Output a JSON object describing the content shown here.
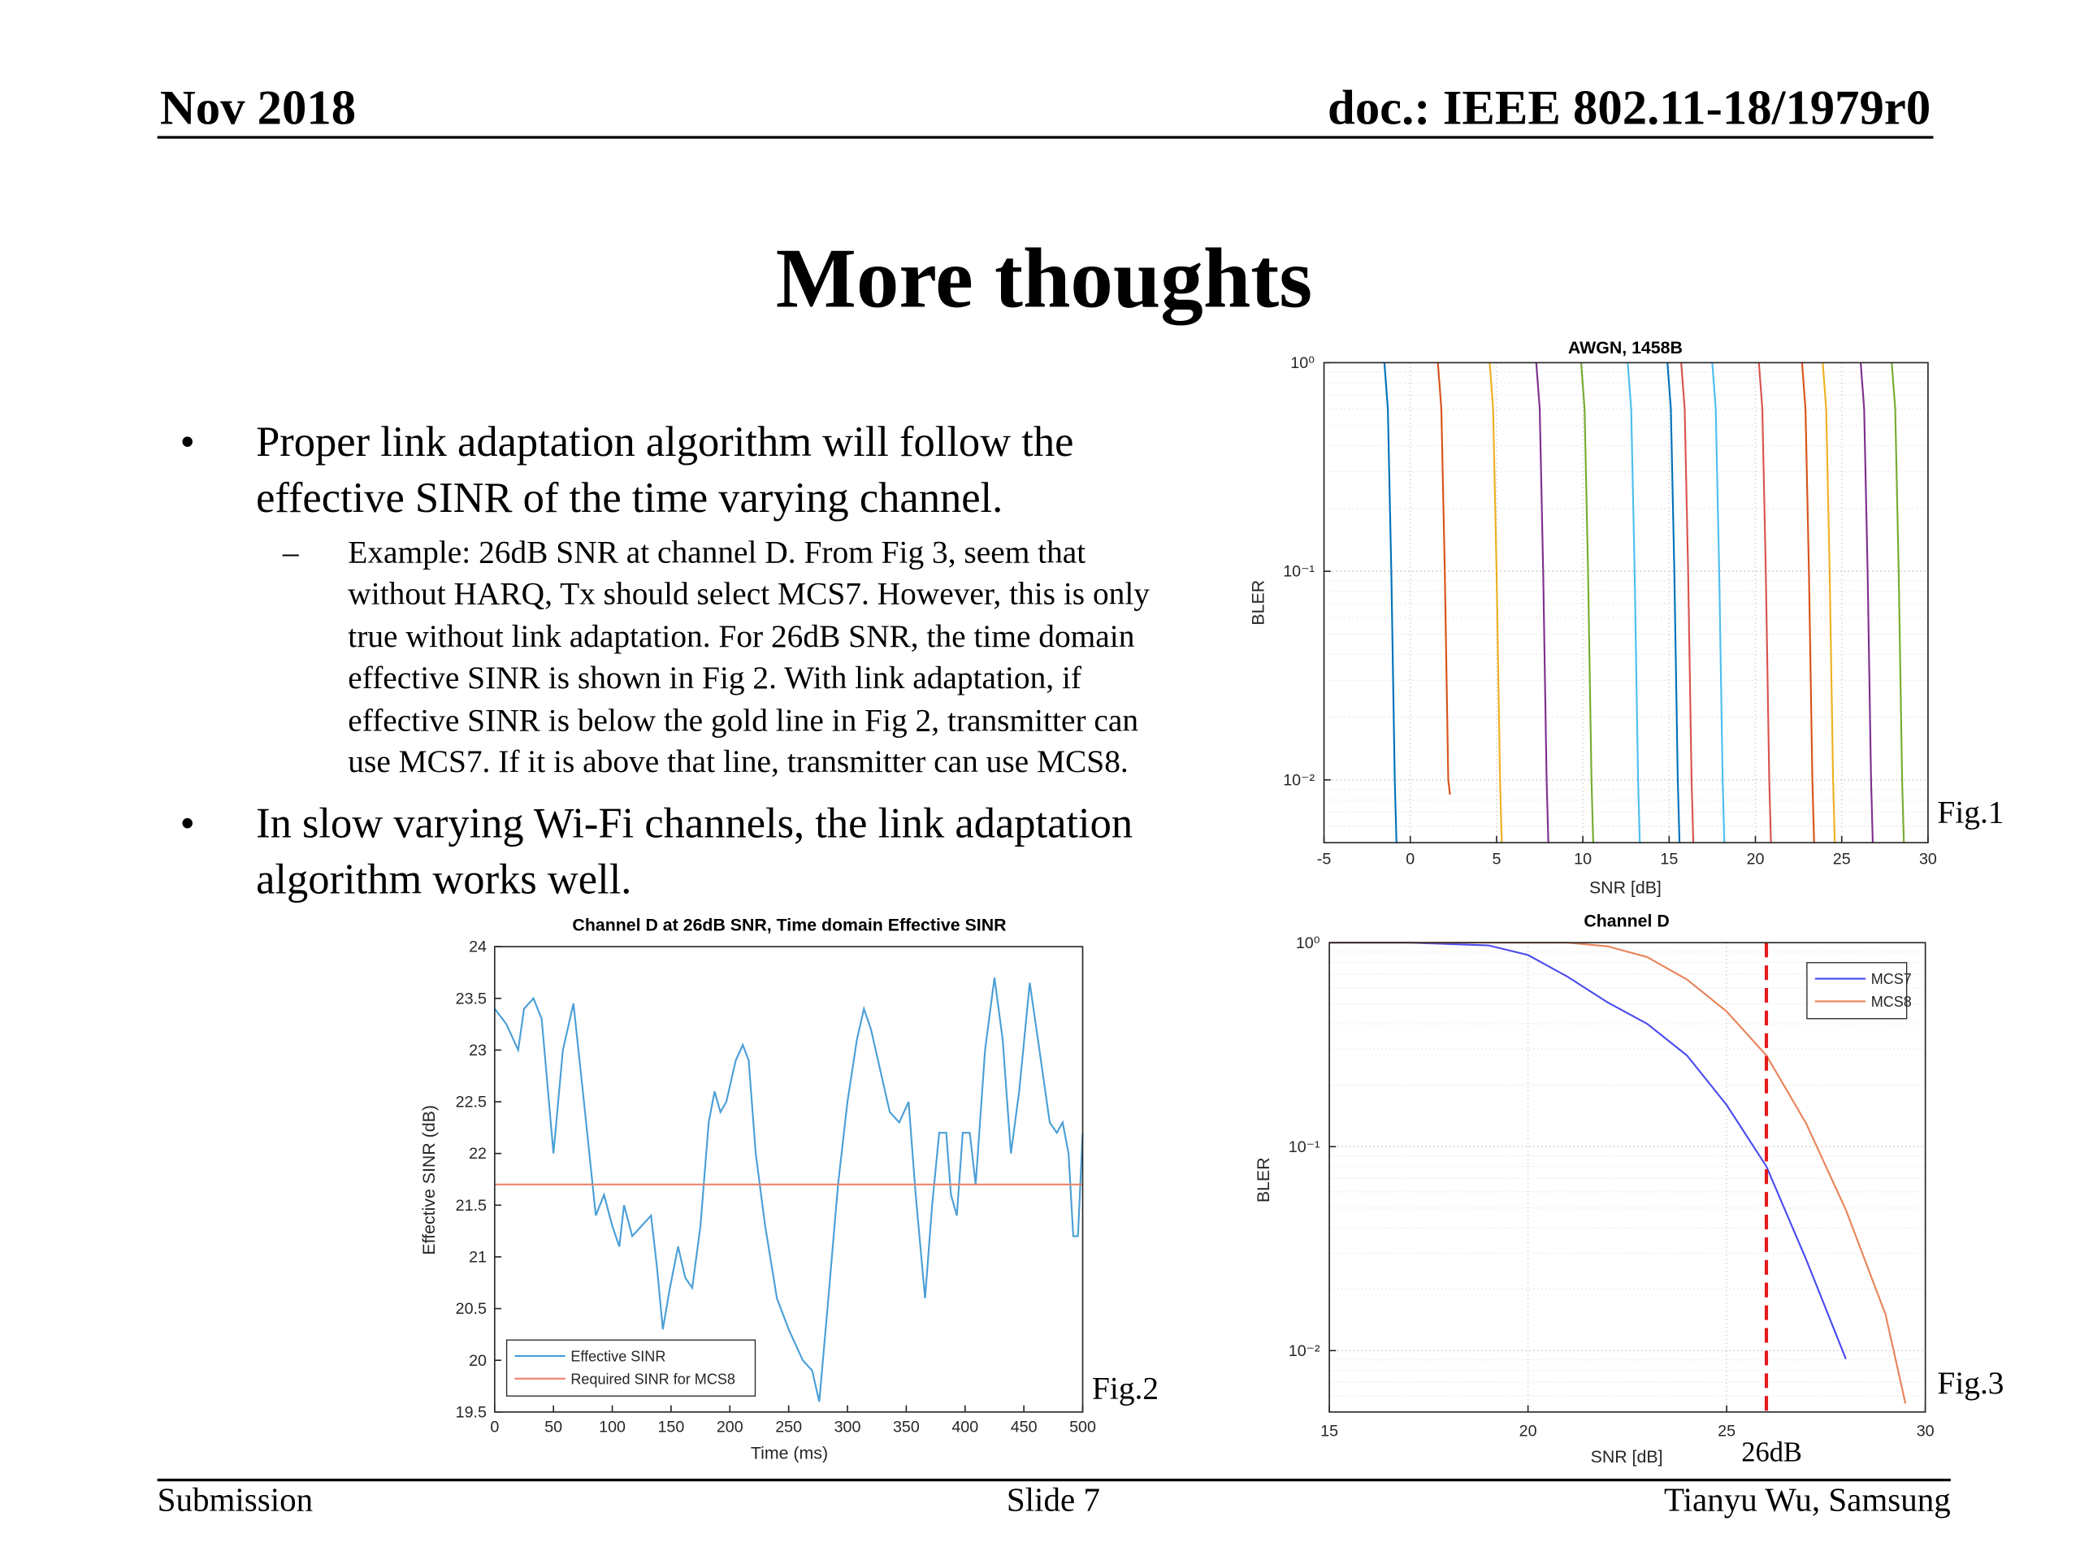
{
  "header": {
    "date": "Nov 2018",
    "doc_id": "doc.: IEEE 802.11-18/1979r0"
  },
  "title": "More thoughts",
  "bullets": [
    {
      "marker": "•",
      "lines": [
        "Proper link adaptation algorithm will follow the",
        "effective SINR of the time varying channel."
      ],
      "sub": [
        {
          "marker": "–",
          "lines": [
            "Example: 26dB SNR at channel D. From Fig 3, seem that",
            "without HARQ, Tx should select MCS7. However, this is only",
            "true without link adaptation. For 26dB SNR, the time domain",
            "effective SINR is shown in Fig 2. With link adaptation, if",
            "effective SINR is below the gold line in Fig 2, transmitter can",
            "use MCS7. If it is above that line, transmitter can use MCS8."
          ]
        }
      ]
    },
    {
      "marker": "•",
      "lines": [
        "In slow varying Wi-Fi channels, the link adaptation",
        "algorithm works well."
      ]
    }
  ],
  "figure_labels": [
    "Fig.1",
    "Fig.2",
    "Fig.3"
  ],
  "footer": {
    "left": "Submission",
    "center": "Slide 7",
    "right": "Tianyu Wu, Samsung"
  },
  "chart_data": [
    {
      "type": "line",
      "title": "AWGN, 1458B",
      "x_label": "SNR [dB]",
      "y_label": "BLER",
      "ylog": true,
      "grid": true,
      "xlim": [
        -5,
        30
      ],
      "xticks": [
        -5,
        0,
        5,
        10,
        15,
        20,
        25,
        30
      ],
      "ylim": [
        0.005,
        1
      ],
      "yticks": [
        {
          "value": 0.01,
          "label": "10⁻²"
        },
        {
          "value": 0.1,
          "label": "10⁻¹"
        },
        {
          "value": 1,
          "label": "10⁰"
        }
      ],
      "series": [
        {
          "color": "#0072BD",
          "x": [
            -1.5,
            -1.3,
            -1.1,
            -0.9,
            -0.8
          ],
          "values": [
            1,
            0.6,
            0.1,
            0.01,
            0.005
          ]
        },
        {
          "color": "#D95319",
          "x": [
            1.6,
            1.8,
            2.0,
            2.2,
            2.3
          ],
          "values": [
            1,
            0.6,
            0.1,
            0.01,
            0.0085
          ]
        },
        {
          "color": "#EDB120",
          "x": [
            4.6,
            4.8,
            5.0,
            5.2,
            5.3
          ],
          "values": [
            1,
            0.6,
            0.1,
            0.01,
            0.005
          ]
        },
        {
          "color": "#7E2F8E",
          "x": [
            7.3,
            7.5,
            7.7,
            7.9,
            8.0
          ],
          "values": [
            1,
            0.6,
            0.1,
            0.01,
            0.005
          ]
        },
        {
          "color": "#77AC30",
          "x": [
            9.9,
            10.1,
            10.3,
            10.5,
            10.6
          ],
          "values": [
            1,
            0.6,
            0.1,
            0.01,
            0.005
          ]
        },
        {
          "color": "#4DBEEE",
          "x": [
            12.6,
            12.8,
            13.0,
            13.2,
            13.3
          ],
          "values": [
            1,
            0.6,
            0.1,
            0.01,
            0.005
          ]
        },
        {
          "color": "#0072BD",
          "x": [
            14.9,
            15.1,
            15.3,
            15.5,
            15.6
          ],
          "values": [
            1,
            0.6,
            0.1,
            0.01,
            0.005
          ]
        },
        {
          "color": "#D9534F",
          "x": [
            15.7,
            15.9,
            16.1,
            16.3,
            16.4
          ],
          "values": [
            1,
            0.6,
            0.1,
            0.01,
            0.005
          ]
        },
        {
          "color": "#4DBEEE",
          "x": [
            17.5,
            17.7,
            17.9,
            18.1,
            18.2
          ],
          "values": [
            1,
            0.6,
            0.1,
            0.01,
            0.005
          ]
        },
        {
          "color": "#D9534F",
          "x": [
            20.2,
            20.4,
            20.6,
            20.8,
            20.9
          ],
          "values": [
            1,
            0.6,
            0.1,
            0.01,
            0.005
          ]
        },
        {
          "color": "#D95319",
          "x": [
            22.7,
            22.9,
            23.1,
            23.3,
            23.4
          ],
          "values": [
            1,
            0.6,
            0.1,
            0.01,
            0.005
          ]
        },
        {
          "color": "#EDB120",
          "x": [
            23.9,
            24.1,
            24.3,
            24.5,
            24.6
          ],
          "values": [
            1,
            0.6,
            0.1,
            0.01,
            0.005
          ]
        },
        {
          "color": "#7E2F8E",
          "x": [
            26.1,
            26.3,
            26.5,
            26.7,
            26.8
          ],
          "values": [
            1,
            0.6,
            0.1,
            0.01,
            0.005
          ]
        },
        {
          "color": "#77AC30",
          "x": [
            27.9,
            28.1,
            28.3,
            28.5,
            28.6
          ],
          "values": [
            1,
            0.6,
            0.1,
            0.01,
            0.005
          ]
        }
      ]
    },
    {
      "type": "line",
      "title": "Channel D at 26dB SNR, Time domain Effective SINR",
      "x_label": "Time (ms)",
      "y_label": "Effective SINR (dB)",
      "grid": false,
      "legend": "lower left",
      "xlim": [
        0,
        500
      ],
      "xticks": [
        0,
        50,
        100,
        150,
        200,
        250,
        300,
        350,
        400,
        450,
        500
      ],
      "ylim": [
        19.5,
        24
      ],
      "yticks": [
        19.5,
        20,
        20.5,
        21,
        21.5,
        22,
        22.5,
        23,
        23.5,
        24
      ],
      "series": [
        {
          "name": "Effective SINR",
          "color": "#4a9fd6",
          "x": [
            0,
            10,
            20,
            25,
            33,
            40,
            50,
            58,
            67,
            75,
            86,
            93,
            100,
            106,
            110,
            117,
            125,
            133,
            138,
            143,
            149,
            156,
            162,
            168,
            175,
            182,
            187,
            192,
            197,
            205,
            211,
            216,
            222,
            230,
            240,
            250,
            262,
            270,
            276,
            283,
            292,
            300,
            308,
            314,
            320,
            328,
            336,
            344,
            352,
            358,
            366,
            372,
            378,
            384,
            388,
            393,
            398,
            404,
            409,
            417,
            425,
            432,
            439,
            446,
            455,
            462,
            472,
            478,
            483,
            488,
            492,
            496,
            500
          ],
          "values": [
            23.4,
            23.25,
            23.0,
            23.4,
            23.5,
            23.3,
            22.0,
            23.0,
            23.45,
            22.6,
            21.4,
            21.6,
            21.3,
            21.1,
            21.5,
            21.2,
            21.3,
            21.4,
            20.9,
            20.3,
            20.7,
            21.1,
            20.8,
            20.7,
            21.3,
            22.3,
            22.6,
            22.4,
            22.5,
            22.9,
            23.05,
            22.9,
            22.0,
            21.3,
            20.6,
            20.3,
            20.0,
            19.9,
            19.6,
            20.5,
            21.7,
            22.5,
            23.1,
            23.4,
            23.2,
            22.8,
            22.4,
            22.3,
            22.5,
            21.6,
            20.6,
            21.5,
            22.2,
            22.2,
            21.6,
            21.4,
            22.2,
            22.2,
            21.7,
            23.0,
            23.7,
            23.1,
            22.0,
            22.6,
            23.65,
            23.1,
            22.3,
            22.2,
            22.3,
            22.0,
            21.2,
            21.2,
            22.2
          ]
        },
        {
          "name": "Required SINR for MCS8",
          "color": "#e8846a",
          "x": [
            0,
            500
          ],
          "values": [
            21.7,
            21.7
          ]
        }
      ]
    },
    {
      "type": "line",
      "title": "Channel D",
      "x_label": "SNR [dB]",
      "y_label": "BLER",
      "ylog": true,
      "grid": true,
      "legend": "upper right",
      "xlim": [
        15,
        30
      ],
      "xticks": [
        15,
        20,
        25,
        30
      ],
      "ylim": [
        0.005,
        1
      ],
      "yticks": [
        {
          "value": 0.01,
          "label": "10⁻²"
        },
        {
          "value": 0.1,
          "label": "10⁻¹"
        },
        {
          "value": 1,
          "label": "10⁰"
        }
      ],
      "series": [
        {
          "name": "MCS7",
          "color": "#4a4af0",
          "x": [
            15,
            17,
            19,
            20,
            21,
            22,
            23,
            24,
            25,
            26,
            27,
            28
          ],
          "values": [
            1,
            1,
            0.97,
            0.87,
            0.68,
            0.51,
            0.4,
            0.28,
            0.16,
            0.08,
            0.028,
            0.0091
          ]
        },
        {
          "name": "MCS8",
          "color": "#e8845a",
          "x": [
            15,
            17,
            19,
            21,
            22,
            23,
            24,
            25,
            26,
            27,
            28,
            29,
            29.5
          ],
          "values": [
            1,
            1,
            1,
            1,
            0.96,
            0.85,
            0.66,
            0.46,
            0.28,
            0.13,
            0.049,
            0.015,
            0.0055
          ]
        }
      ],
      "vline": {
        "x": 26,
        "label": "26dB",
        "color": "#e31a1c"
      }
    }
  ]
}
